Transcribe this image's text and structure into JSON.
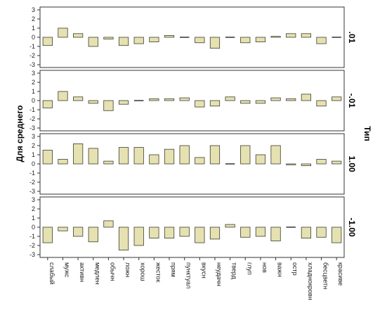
{
  "chart_data": {
    "type": "bar",
    "ylabel": "Для среднего",
    "facet_title": "Тип",
    "ylim": [
      -3,
      3
    ],
    "yticks": [
      3,
      2,
      1,
      0,
      -1,
      -2,
      -3
    ],
    "grid": false,
    "bar_color": "#e5e1b1",
    "bar_stroke": "#3d3d2f",
    "categories": [
      "слабый",
      "мужс",
      "активн",
      "медлен",
      "обычн",
      "ложн",
      "хорош",
      "жесток",
      "прям",
      "пунктуал",
      "вкусн",
      "неудачн",
      "тверд",
      "глуп",
      "нов",
      "важн",
      "остр",
      "хладнокровн",
      "бесцветн",
      "красиве"
    ],
    "panels": [
      {
        "label": ".01",
        "values": [
          -0.9,
          1.0,
          0.4,
          -1.0,
          -0.2,
          -0.9,
          -0.7,
          -0.5,
          0.2,
          -0.05,
          -0.6,
          -1.2,
          -0.05,
          -0.6,
          -0.5,
          0.1,
          0.4,
          0.4,
          -0.7,
          -0.05
        ]
      },
      {
        "label": "-.01",
        "values": [
          -0.8,
          1.0,
          0.4,
          -0.3,
          -1.1,
          -0.4,
          -0.05,
          0.2,
          0.2,
          0.3,
          -0.7,
          -0.6,
          0.4,
          -0.3,
          -0.3,
          0.3,
          0.2,
          0.7,
          -0.6,
          0.4
        ]
      },
      {
        "label": "1.00",
        "values": [
          1.5,
          0.5,
          2.2,
          1.7,
          0.3,
          1.8,
          1.8,
          1.0,
          1.6,
          2.0,
          0.7,
          2.0,
          0.0,
          2.0,
          1.0,
          2.0,
          -0.1,
          -0.2,
          0.5,
          0.3
        ]
      },
      {
        "label": "-1.00",
        "values": [
          -1.7,
          -0.4,
          -1.0,
          -1.6,
          0.7,
          -2.5,
          -2.0,
          -1.2,
          -1.2,
          -1.0,
          -1.7,
          -1.3,
          0.3,
          -1.1,
          -1.0,
          -1.5,
          -0.05,
          -1.2,
          -1.1,
          -1.7
        ]
      }
    ]
  }
}
